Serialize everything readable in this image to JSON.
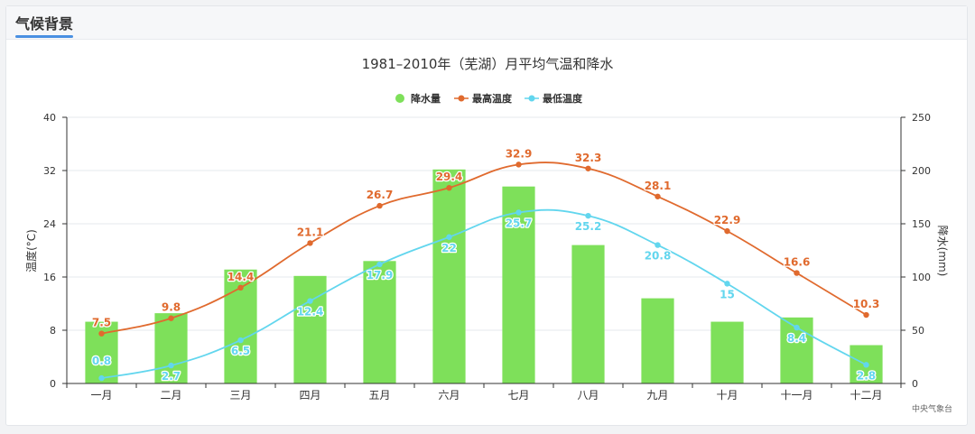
{
  "panel": {
    "title": "气候背景"
  },
  "colors": {
    "precip": "#7ee05a",
    "high": "#e06a2e",
    "low": "#62d6ee",
    "accent": "#4a90e2"
  },
  "chart_data": {
    "type": "bar+line",
    "title": "1981–2010年（芜湖）月平均气温和降水",
    "categories": [
      "一月",
      "二月",
      "三月",
      "四月",
      "五月",
      "六月",
      "七月",
      "八月",
      "九月",
      "十月",
      "十一月",
      "十二月"
    ],
    "series": [
      {
        "name": "降水量",
        "type": "bar",
        "axis": "right",
        "values": [
          58,
          66,
          107,
          101,
          115,
          201,
          185,
          130,
          80,
          58,
          62,
          36
        ]
      },
      {
        "name": "最高温度",
        "type": "line",
        "axis": "left",
        "values": [
          7.5,
          9.8,
          14.4,
          21.1,
          26.7,
          29.4,
          32.9,
          32.3,
          28.1,
          22.9,
          16.6,
          10.3
        ]
      },
      {
        "name": "最低温度",
        "type": "line",
        "axis": "left",
        "values": [
          0.8,
          2.7,
          6.5,
          12.4,
          17.9,
          22,
          25.7,
          25.2,
          20.8,
          15,
          8.4,
          2.8
        ]
      }
    ],
    "y_left": {
      "label": "温度(°C)",
      "min": 0,
      "max": 40,
      "ticks": [
        0,
        8,
        16,
        24,
        32,
        40
      ]
    },
    "y_right": {
      "label": "降水(mm)",
      "min": 0,
      "max": 250,
      "ticks": [
        0,
        50,
        100,
        150,
        200,
        250
      ]
    },
    "legend_position": "top-center",
    "grid": true,
    "source": "中央气象台"
  }
}
